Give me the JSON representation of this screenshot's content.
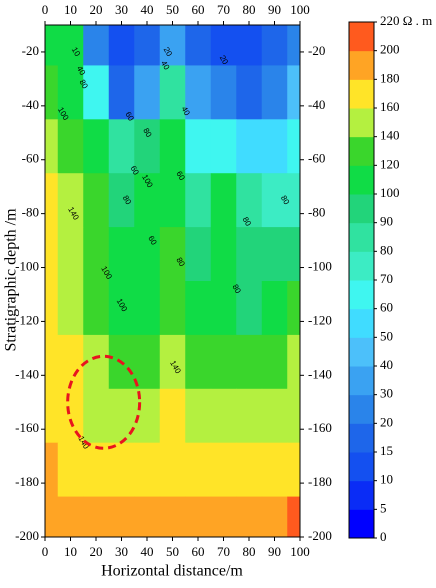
{
  "chart_data": {
    "type": "contour",
    "xlabel": "Horizontal distance/m",
    "ylabel": "Stratigraphic depth /m",
    "x": [
      0,
      10,
      20,
      30,
      40,
      50,
      60,
      70,
      80,
      90,
      100
    ],
    "y": [
      -15,
      -35,
      -55,
      -75,
      -95,
      -115,
      -135,
      -155,
      -175,
      -195
    ],
    "z": [
      [
        110,
        100,
        25,
        10,
        15,
        30,
        15,
        10,
        10,
        15,
        20
      ],
      [
        130,
        105,
        60,
        15,
        30,
        80,
        30,
        20,
        15,
        20,
        40
      ],
      [
        145,
        130,
        110,
        80,
        90,
        100,
        60,
        60,
        50,
        50,
        60
      ],
      [
        160,
        140,
        120,
        90,
        100,
        110,
        80,
        100,
        80,
        70,
        75
      ],
      [
        165,
        145,
        125,
        110,
        110,
        120,
        90,
        100,
        95,
        90,
        90
      ],
      [
        165,
        150,
        130,
        115,
        115,
        120,
        110,
        110,
        95,
        110,
        120
      ],
      [
        170,
        160,
        140,
        130,
        130,
        145,
        120,
        130,
        130,
        135,
        140
      ],
      [
        175,
        165,
        155,
        150,
        145,
        160,
        150,
        150,
        150,
        150,
        155
      ],
      [
        185,
        175,
        165,
        165,
        165,
        165,
        165,
        165,
        165,
        165,
        170
      ],
      [
        195,
        190,
        185,
        180,
        180,
        180,
        180,
        180,
        185,
        195,
        205
      ]
    ],
    "xlim": [
      0,
      100
    ],
    "ylim": [
      -200,
      -10
    ],
    "xticks": [
      0,
      10,
      20,
      30,
      40,
      50,
      60,
      70,
      80,
      90,
      100
    ],
    "yticks": [
      -200,
      -180,
      -160,
      -140,
      -120,
      -100,
      -80,
      -60,
      -40,
      -20
    ],
    "colorbar": {
      "ticks": [
        0,
        5,
        10,
        15,
        20,
        30,
        40,
        50,
        60,
        70,
        80,
        90,
        100,
        120,
        140,
        160,
        180,
        200,
        {
          "value": 220,
          "label": "220 Ω . m"
        }
      ],
      "colors": [
        "#0000ff",
        "#0a2cf6",
        "#1450f0",
        "#1e66ea",
        "#2a84ea",
        "#3aa2f2",
        "#4cc0fa",
        "#40dcff",
        "#3ff6f0",
        "#3cecc4",
        "#30e2a0",
        "#22d47a",
        "#10dc46",
        "#3ad62c",
        "#b4f040",
        "#ffe428",
        "#ffa424",
        "#ff5a1e"
      ]
    },
    "contour_labels": [
      "10",
      "40",
      "80",
      "100",
      "60",
      "80",
      "40",
      "20",
      "20",
      "40",
      "100",
      "60",
      "60",
      "140",
      "80",
      "60",
      "80",
      "80",
      "100",
      "80",
      "100",
      "80",
      "140",
      "140"
    ]
  }
}
